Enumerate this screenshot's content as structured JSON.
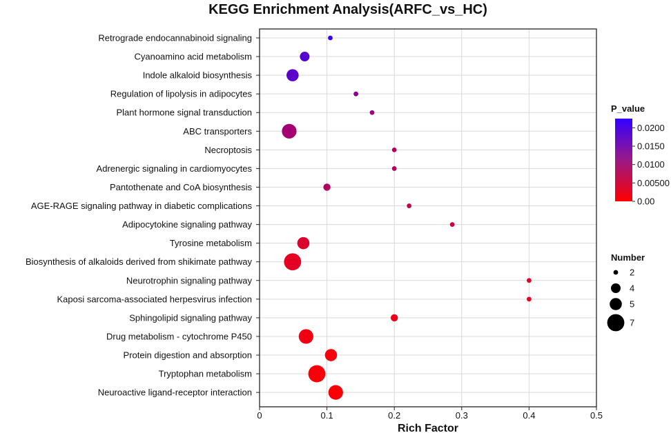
{
  "chart_data": {
    "type": "scatter",
    "title": "KEGG Enrichment Analysis(ARFC_vs_HC)",
    "xlabel": "Rich Factor",
    "xlim": [
      0,
      0.5
    ],
    "xticks": [
      {
        "value": 0,
        "label": "0"
      },
      {
        "value": 0.1,
        "label": "0.1"
      },
      {
        "value": 0.2,
        "label": "0.2"
      },
      {
        "value": 0.3,
        "label": "0.3"
      },
      {
        "value": 0.4,
        "label": "0.4"
      },
      {
        "value": 0.5,
        "label": "0.5"
      }
    ],
    "grid": true,
    "points": [
      {
        "term": "Retrograde endocannabinoid signaling",
        "rich_factor": 0.105,
        "number": 2,
        "p_value": 0.0215
      },
      {
        "term": "Cyanoamino acid metabolism",
        "rich_factor": 0.067,
        "number": 4,
        "p_value": 0.0185
      },
      {
        "term": "Indole alkaloid biosynthesis",
        "rich_factor": 0.049,
        "number": 5,
        "p_value": 0.018
      },
      {
        "term": "Regulation of lipolysis in adipocytes",
        "rich_factor": 0.143,
        "number": 2,
        "p_value": 0.013
      },
      {
        "term": "Plant hormone signal transduction",
        "rich_factor": 0.167,
        "number": 2,
        "p_value": 0.011
      },
      {
        "term": "ABC transporters",
        "rich_factor": 0.044,
        "number": 6,
        "p_value": 0.01
      },
      {
        "term": "Necroptosis",
        "rich_factor": 0.2,
        "number": 2,
        "p_value": 0.0085
      },
      {
        "term": "Adrenergic signaling in cardiomyocytes",
        "rich_factor": 0.2,
        "number": 2,
        "p_value": 0.0085
      },
      {
        "term": "Pantothenate and CoA biosynthesis",
        "rich_factor": 0.1,
        "number": 3,
        "p_value": 0.0085
      },
      {
        "term": "AGE-RAGE signaling pathway in diabetic complications",
        "rich_factor": 0.222,
        "number": 2,
        "p_value": 0.007
      },
      {
        "term": "Adipocytokine signaling pathway",
        "rich_factor": 0.286,
        "number": 2,
        "p_value": 0.0055
      },
      {
        "term": "Tyrosine metabolism",
        "rich_factor": 0.065,
        "number": 5,
        "p_value": 0.004
      },
      {
        "term": "Biosynthesis of alkaloids derived from shikimate pathway",
        "rich_factor": 0.049,
        "number": 7,
        "p_value": 0.003
      },
      {
        "term": "Neurotrophin signaling pathway",
        "rich_factor": 0.4,
        "number": 2,
        "p_value": 0.003
      },
      {
        "term": "Kaposi sarcoma-associated herpesvirus infection",
        "rich_factor": 0.4,
        "number": 2,
        "p_value": 0.0025
      },
      {
        "term": "Sphingolipid signaling pathway",
        "rich_factor": 0.2,
        "number": 3,
        "p_value": 0.002
      },
      {
        "term": "Drug metabolism - cytochrome P450",
        "rich_factor": 0.069,
        "number": 6,
        "p_value": 0.0015
      },
      {
        "term": "Protein digestion and absorption",
        "rich_factor": 0.106,
        "number": 5,
        "p_value": 0.001
      },
      {
        "term": "Tryptophan metabolism",
        "rich_factor": 0.085,
        "number": 7,
        "p_value": 0.0008
      },
      {
        "term": "Neuroactive ligand-receptor interaction",
        "rich_factor": 0.113,
        "number": 6,
        "p_value": 0.0005
      }
    ],
    "color_legend": {
      "title": "P_value",
      "min": 0,
      "max": 0.0225,
      "low_color": "#ff0000",
      "high_color": "#3300ff",
      "ticks": [
        {
          "value": 0.02,
          "label": "0.0200"
        },
        {
          "value": 0.015,
          "label": "0.0150"
        },
        {
          "value": 0.01,
          "label": "0.0100"
        },
        {
          "value": 0.005,
          "label": "0.00500"
        },
        {
          "value": 0,
          "label": "0.00"
        }
      ]
    },
    "size_legend": {
      "title": "Number",
      "entries": [
        {
          "value": 2,
          "label": "2"
        },
        {
          "value": 4,
          "label": "4"
        },
        {
          "value": 5,
          "label": "5"
        },
        {
          "value": 7,
          "label": "7"
        }
      ]
    }
  }
}
